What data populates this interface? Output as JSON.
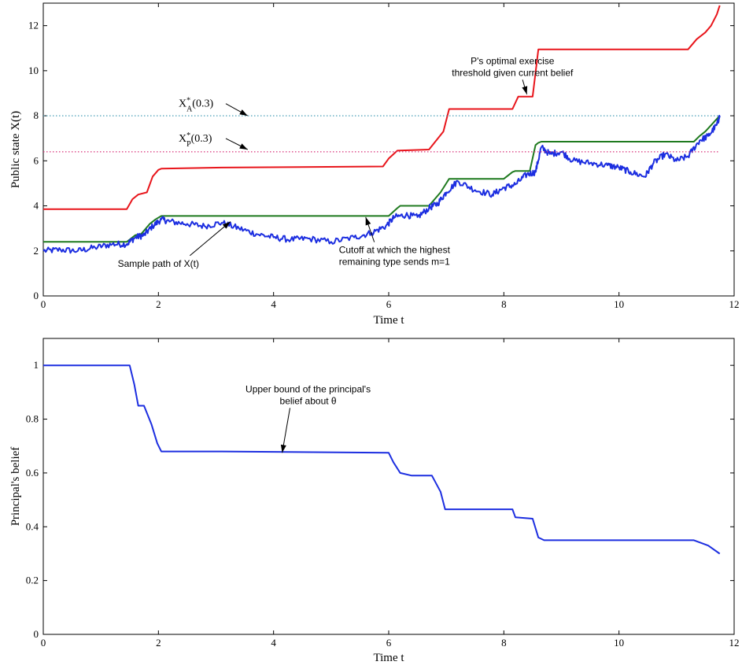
{
  "chart_data": [
    {
      "type": "line",
      "xlabel": "Time t",
      "ylabel": "Public state X(t)",
      "xlim": [
        0,
        12
      ],
      "ylim": [
        0,
        13
      ],
      "xticks": [
        "0",
        "2",
        "4",
        "6",
        "8",
        "10",
        "12"
      ],
      "yticks": [
        "0",
        "2",
        "4",
        "6",
        "8",
        "10",
        "12"
      ],
      "grid": false,
      "series": [
        {
          "key": "threshold",
          "color": "#e8151b",
          "style": "step",
          "x": [
            0,
            1.45,
            1.55,
            1.65,
            1.8,
            1.9,
            2.0,
            2.05,
            3.1,
            5.9,
            6.0,
            6.15,
            6.7,
            6.95,
            7.05,
            8.15,
            8.25,
            8.5,
            8.6,
            11.2,
            11.35,
            11.5,
            11.6,
            11.7,
            11.75
          ],
          "y": [
            3.85,
            3.85,
            4.3,
            4.5,
            4.6,
            5.3,
            5.6,
            5.65,
            5.7,
            5.75,
            6.1,
            6.45,
            6.5,
            7.3,
            8.3,
            8.3,
            8.85,
            8.85,
            10.95,
            10.95,
            11.4,
            11.7,
            12.0,
            12.5,
            12.9
          ]
        },
        {
          "key": "cutoff",
          "color": "#1f7a1f",
          "style": "step",
          "x": [
            0,
            1.45,
            1.6,
            1.7,
            1.85,
            1.95,
            2.05,
            6.0,
            6.15,
            6.2,
            6.7,
            6.9,
            7.0,
            7.05,
            8.0,
            8.15,
            8.2,
            8.45,
            8.55,
            8.6,
            8.65,
            11.3,
            11.4,
            11.5,
            11.75
          ],
          "y": [
            2.4,
            2.4,
            2.7,
            2.75,
            3.2,
            3.4,
            3.55,
            3.55,
            3.9,
            4.0,
            4.0,
            4.6,
            5.0,
            5.2,
            5.2,
            5.5,
            5.55,
            5.55,
            6.7,
            6.8,
            6.85,
            6.85,
            7.1,
            7.3,
            8.0
          ]
        },
        {
          "key": "sample",
          "color": "#1c2ee0",
          "style": "noisy",
          "x": [
            0,
            0.3,
            0.6,
            0.9,
            1.2,
            1.45,
            1.6,
            1.75,
            1.9,
            2.05,
            2.2,
            2.5,
            2.8,
            3.1,
            3.4,
            3.7,
            4.0,
            4.3,
            4.6,
            5.0,
            5.4,
            5.7,
            5.95,
            6.1,
            6.3,
            6.5,
            6.7,
            6.85,
            7.0,
            7.2,
            7.5,
            7.8,
            8.0,
            8.2,
            8.4,
            8.55,
            8.65,
            8.8,
            9.0,
            9.2,
            9.5,
            9.8,
            10.0,
            10.2,
            10.45,
            10.6,
            10.8,
            11.0,
            11.2,
            11.4,
            11.55,
            11.7,
            11.75
          ],
          "y": [
            2.0,
            2.05,
            2.0,
            2.15,
            2.3,
            2.3,
            2.6,
            2.7,
            3.1,
            3.4,
            3.3,
            3.2,
            3.1,
            3.25,
            3.0,
            2.75,
            2.6,
            2.5,
            2.55,
            2.4,
            2.6,
            2.8,
            3.1,
            3.5,
            3.6,
            3.5,
            3.9,
            4.1,
            4.6,
            5.1,
            4.7,
            4.5,
            4.8,
            4.95,
            5.4,
            5.5,
            6.6,
            6.3,
            6.4,
            6.0,
            5.9,
            5.8,
            5.7,
            5.5,
            5.3,
            5.9,
            6.3,
            6.0,
            6.2,
            6.9,
            7.1,
            7.6,
            8.0
          ]
        },
        {
          "key": "xa",
          "color": "#4a9fb8",
          "style": "dotted",
          "x": [
            0,
            11.75
          ],
          "y": [
            8.0,
            8.0
          ]
        },
        {
          "key": "xp",
          "color": "#d9327a",
          "style": "dotted",
          "x": [
            0,
            11.75
          ],
          "y": [
            6.4,
            6.4
          ]
        }
      ],
      "series_labels": [
        {
          "key": "xa",
          "main": "X",
          "sub": "A",
          "sup": "*",
          "arg": "(0.3)",
          "tx": 2.35,
          "ty": 8.4,
          "ax": 3.55,
          "ay": 8.0
        },
        {
          "key": "xp",
          "main": "X",
          "sub": "P",
          "sup": "*",
          "arg": "(0.3)",
          "tx": 2.35,
          "ty": 6.85,
          "ax": 3.55,
          "ay": 6.5
        }
      ],
      "annotations": [
        {
          "lines": [
            "P's optimal exercise",
            "threshold given current belief"
          ],
          "tx": 8.15,
          "ty": 10.3,
          "ax": 8.4,
          "ay": 8.95
        },
        {
          "lines": [
            "Sample path of X(t)"
          ],
          "tx": 2.0,
          "ty": 1.3,
          "ax": 3.25,
          "ay": 3.3
        },
        {
          "lines": [
            "Cutoff at which the highest",
            "remaining type sends m=1"
          ],
          "tx": 6.1,
          "ty": 1.9,
          "ax": 5.6,
          "ay": 3.5
        }
      ]
    },
    {
      "type": "line",
      "xlabel": "Time t",
      "ylabel": "Principal's belief",
      "xlim": [
        0,
        12
      ],
      "ylim": [
        0,
        1.1
      ],
      "xticks": [
        "0",
        "2",
        "4",
        "6",
        "8",
        "10",
        "12"
      ],
      "yticks": [
        "0",
        "0.2",
        "0.4",
        "0.6",
        "0.8",
        "1"
      ],
      "grid": false,
      "series": [
        {
          "key": "belief",
          "color": "#1c2ee0",
          "style": "step",
          "x": [
            0,
            1.5,
            1.58,
            1.65,
            1.75,
            1.88,
            1.98,
            2.05,
            3.1,
            6.0,
            6.08,
            6.2,
            6.4,
            6.75,
            6.9,
            6.98,
            8.15,
            8.2,
            8.5,
            8.6,
            8.7,
            11.3,
            11.55,
            11.75
          ],
          "y": [
            1.0,
            1.0,
            0.93,
            0.85,
            0.85,
            0.78,
            0.71,
            0.68,
            0.68,
            0.675,
            0.64,
            0.6,
            0.59,
            0.59,
            0.53,
            0.465,
            0.465,
            0.435,
            0.43,
            0.36,
            0.35,
            0.35,
            0.33,
            0.3
          ]
        }
      ],
      "annotations": [
        {
          "lines": [
            "Upper bound of the principal's",
            "belief about θ"
          ],
          "tx": 4.6,
          "ty": 0.9,
          "ax": 4.15,
          "ay": 0.675
        }
      ]
    }
  ]
}
